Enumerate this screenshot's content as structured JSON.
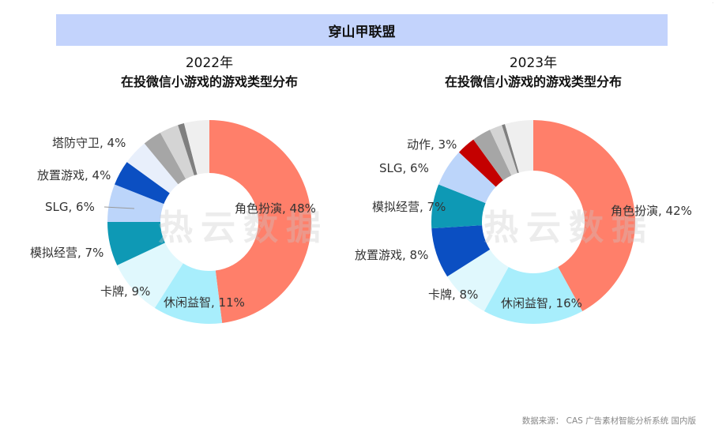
{
  "banner": {
    "title": "穿山甲联盟"
  },
  "source": "数据来源： CAS 广告素材智能分析系统 国内版",
  "watermark": "热云数据",
  "colors": {
    "banner_bg": "#c3d3fc",
    "角色扮演": "#ff7f6a",
    "休闲益智": "#a8eefc",
    "卡牌": "#e0f8fd",
    "模拟经营": "#0e99b5",
    "SLG": "#bcd5fa",
    "放置游戏": "#0b4fc2",
    "塔防守卫": "#e8effb",
    "动作": "#c40000",
    "other_gray_1": "#a6a6a6",
    "other_gray_2": "#d4d4d4",
    "other_gray_3": "#7f7f7f",
    "other_gray_4": "#efefef"
  },
  "chart_data": [
    {
      "type": "pie",
      "subtype": "donut",
      "title": "2022年 在投微信小游戏的游戏类型分布",
      "title_year": "2022年",
      "title_main": "在投微信小游戏的游戏类型分布",
      "categories": [
        "角色扮演",
        "休闲益智",
        "卡牌",
        "模拟经营",
        "SLG",
        "放置游戏",
        "塔防守卫",
        "其他1",
        "其他2",
        "其他3",
        "其他4"
      ],
      "values": [
        48,
        11,
        9,
        7,
        6,
        4,
        4,
        3,
        3,
        1,
        4
      ],
      "labels": [
        {
          "text": "角色扮演, 48%"
        },
        {
          "text": "休闲益智, 11%"
        },
        {
          "text": "卡牌, 9%"
        },
        {
          "text": "模拟经营, 7%"
        },
        {
          "text": "SLG, 6%"
        },
        {
          "text": "放置游戏, 4%"
        },
        {
          "text": "塔防守卫, 4%"
        }
      ],
      "start_angle": "12 o'clock, clockwise"
    },
    {
      "type": "pie",
      "subtype": "donut",
      "title": "2023年 在投微信小游戏的游戏类型分布",
      "title_year": "2023年",
      "title_main": "在投微信小游戏的游戏类型分布",
      "categories": [
        "角色扮演",
        "休闲益智",
        "卡牌",
        "放置游戏",
        "模拟经营",
        "SLG",
        "动作",
        "其他1",
        "其他2",
        "其他3",
        "其他4"
      ],
      "values": [
        42,
        16,
        8,
        8,
        7,
        6,
        3,
        3,
        2,
        0.5,
        4.5
      ],
      "labels": [
        {
          "text": "角色扮演, 42%"
        },
        {
          "text": "休闲益智, 16%"
        },
        {
          "text": "卡牌, 8%"
        },
        {
          "text": "放置游戏, 8%"
        },
        {
          "text": "模拟经营, 7%"
        },
        {
          "text": "SLG, 6%"
        },
        {
          "text": "动作, 3%"
        }
      ],
      "start_angle": "12 o'clock, clockwise"
    }
  ]
}
